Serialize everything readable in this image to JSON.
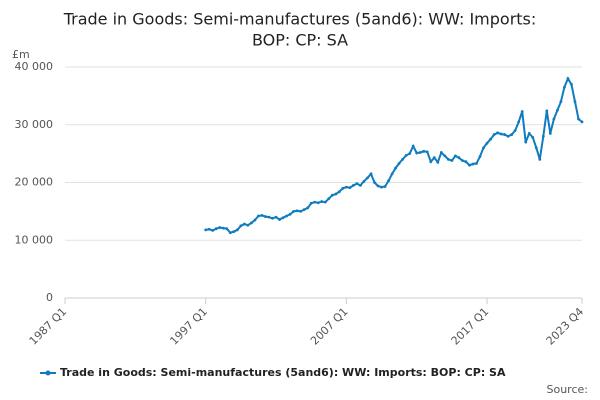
{
  "chart_data": {
    "type": "line",
    "title": [
      "Trade in Goods: Semi-manufactures (5and6): WW: Imports:",
      "BOP: CP: SA"
    ],
    "y_label": "£m",
    "source": "Source:",
    "categories": [
      "1987 Q1",
      null,
      null,
      null,
      null,
      null,
      null,
      null,
      null,
      null,
      null,
      null,
      null,
      null,
      null,
      null,
      null,
      null,
      null,
      null,
      null,
      null,
      null,
      null,
      null,
      null,
      null,
      null,
      null,
      null,
      null,
      null,
      null,
      null,
      null,
      null,
      null,
      null,
      null,
      null,
      "1997 Q1",
      null,
      null,
      null,
      null,
      null,
      null,
      null,
      null,
      null,
      null,
      null,
      null,
      null,
      null,
      null,
      null,
      null,
      null,
      null,
      null,
      null,
      null,
      null,
      null,
      null,
      null,
      null,
      null,
      null,
      null,
      null,
      null,
      null,
      null,
      null,
      null,
      null,
      null,
      null,
      "2007 Q1",
      null,
      null,
      null,
      null,
      null,
      null,
      null,
      null,
      null,
      null,
      null,
      null,
      null,
      null,
      null,
      null,
      null,
      null,
      null,
      null,
      null,
      null,
      null,
      null,
      null,
      null,
      null,
      null,
      null,
      null,
      null,
      null,
      null,
      null,
      null,
      null,
      null,
      null,
      null,
      "2017 Q1",
      null,
      null,
      null,
      null,
      null,
      null,
      null,
      null,
      null,
      null,
      null,
      null,
      null,
      null,
      null,
      null,
      null,
      null,
      null,
      null,
      null,
      null,
      null,
      null,
      null,
      null,
      "2023 Q4"
    ],
    "series": [
      {
        "name": "Trade in Goods: Semi-manufactures (5and6): WW: Imports: BOP: CP: SA",
        "color": "#0f7cbf",
        "values": [
          null,
          null,
          null,
          null,
          null,
          null,
          null,
          null,
          null,
          null,
          null,
          null,
          null,
          null,
          null,
          null,
          null,
          null,
          null,
          null,
          null,
          null,
          null,
          null,
          null,
          null,
          null,
          null,
          null,
          null,
          null,
          null,
          null,
          null,
          null,
          null,
          null,
          null,
          null,
          null,
          11800,
          11900,
          11700,
          12000,
          12200,
          12100,
          12000,
          11300,
          11500,
          11800,
          12500,
          12800,
          12600,
          13000,
          13500,
          14200,
          14300,
          14100,
          14000,
          13800,
          14000,
          13600,
          13900,
          14200,
          14500,
          15000,
          15100,
          15000,
          15300,
          15600,
          16400,
          16600,
          16500,
          16700,
          16600,
          17200,
          17800,
          18000,
          18400,
          19000,
          19200,
          19100,
          19500,
          19800,
          19500,
          20200,
          20800,
          21500,
          20000,
          19400,
          19200,
          19300,
          20300,
          21500,
          22500,
          23300,
          24000,
          24700,
          25000,
          26300,
          25100,
          25200,
          25400,
          25300,
          23600,
          24300,
          23500,
          25200,
          24600,
          24000,
          23800,
          24600,
          24300,
          23800,
          23600,
          23000,
          23200,
          23300,
          24500,
          26000,
          26800,
          27500,
          28300,
          28600,
          28400,
          28300,
          28000,
          28300,
          29000,
          30500,
          32300,
          27000,
          28500,
          27800,
          26000,
          24000,
          28000,
          32400,
          28500,
          31000,
          32500,
          34000,
          36500,
          38000,
          37000,
          34000,
          31000,
          30500
        ]
      }
    ],
    "ylim": [
      0,
      40000
    ],
    "yticks": [
      0,
      {
        "value": 10000,
        "label": "10 000"
      },
      {
        "value": 20000,
        "label": "20 000"
      },
      {
        "value": 30000,
        "label": "30 000"
      },
      {
        "value": 40000,
        "label": "40 000"
      }
    ],
    "grid": true
  }
}
